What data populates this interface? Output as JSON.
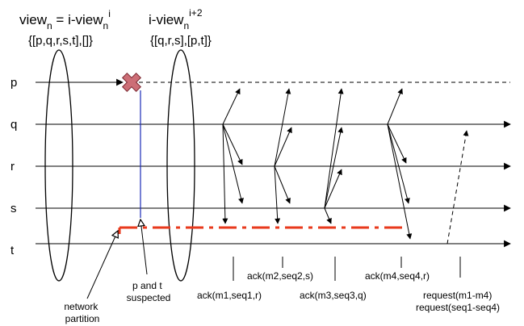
{
  "header": {
    "left_view": {
      "base": "view",
      "sub": "n",
      "mid": " = i-view",
      "sub2": "n",
      "sup": "i"
    },
    "left_set": "{[p,q,r,s,t],[]}",
    "right_view": {
      "base": "i-view",
      "sub": "n",
      "sup": "i+2"
    },
    "right_set": "{[q,r,s],[p,t]}"
  },
  "processes": [
    "p",
    "q",
    "r",
    "s",
    "t"
  ],
  "annotations": {
    "network_partition": [
      "network",
      "partition"
    ],
    "suspected": [
      "p and t",
      "suspected"
    ]
  },
  "acks": [
    "ack(m1,seq1,r)",
    "ack(m2,seq2,s)",
    "ack(m3,seq3,q)",
    "ack(m4,seq4,r)"
  ],
  "requests": [
    "request(m1-m4)",
    "request(seq1-seq4)"
  ],
  "colors": {
    "line": "#000000",
    "partition": "#e8391c",
    "suspect_line": "#1a2bb8",
    "crash_fill": "#cc6e76",
    "crash_stroke": "#7a2730"
  },
  "icons": {
    "crash": "x-cross-icon"
  }
}
